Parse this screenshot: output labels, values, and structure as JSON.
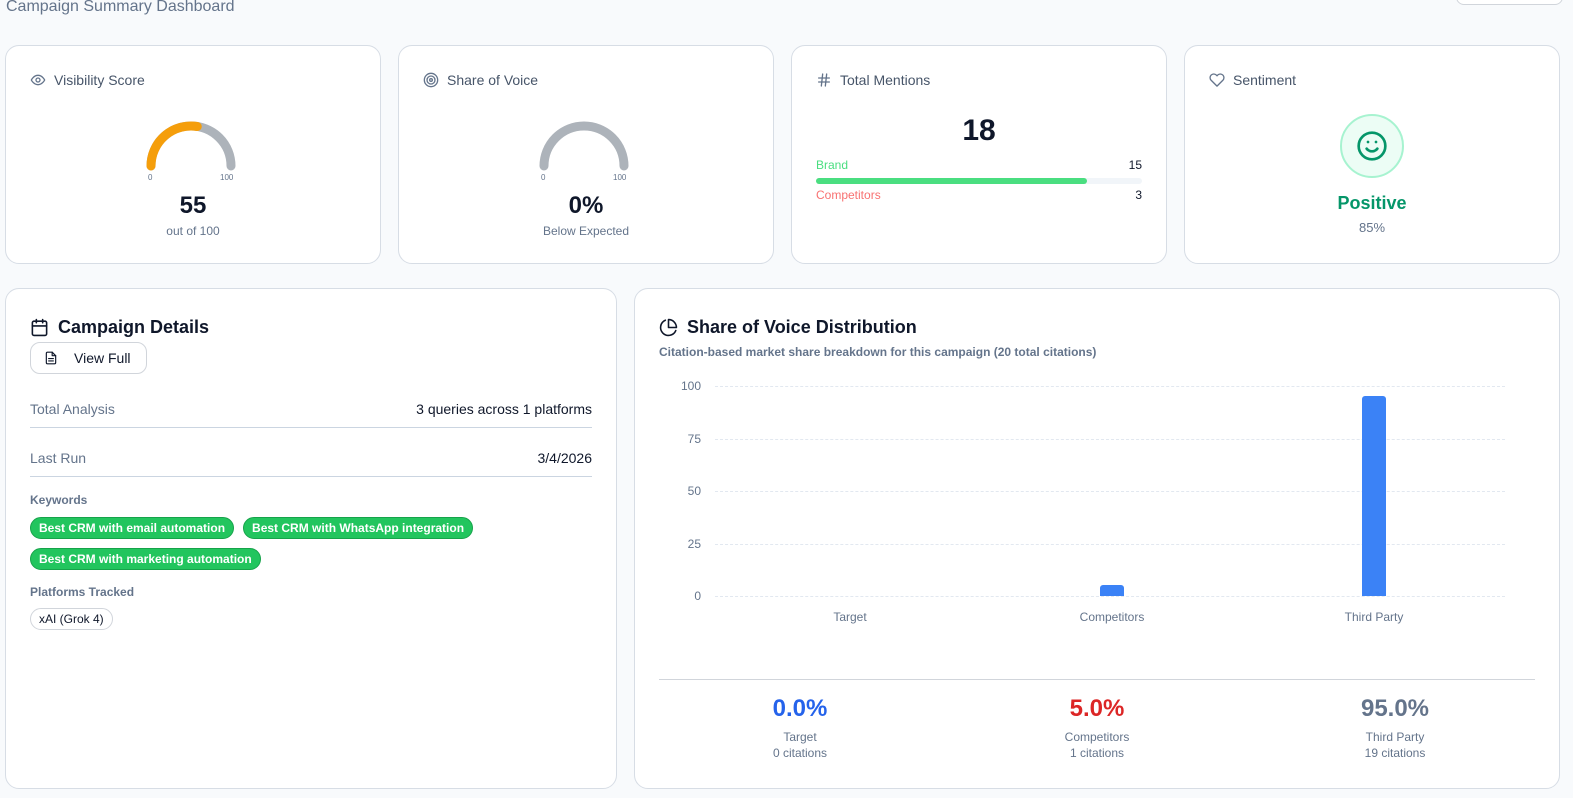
{
  "header": {
    "title": "Campaign Summary Dashboard"
  },
  "colors": {
    "gauge_fill": "#f59e0b",
    "gauge_track": "#adb3ba",
    "brand": "#4ade80",
    "competitors": "#f87171",
    "positive": "#059669",
    "bar": "#3b82f6",
    "target_pct": "#2563eb",
    "competitors_pct": "#dc2626",
    "third_party_pct": "#64748b",
    "keyword_chip": "#22c55e"
  },
  "stats": {
    "visibility": {
      "title": "Visibility Score",
      "icon": "eye-icon",
      "value": "55",
      "sub": "out of 100",
      "gauge_min": "0",
      "gauge_max": "100",
      "gauge_percent": 55
    },
    "share_of_voice": {
      "title": "Share of Voice",
      "icon": "target-icon",
      "value": "0%",
      "sub": "Below Expected",
      "gauge_min": "0",
      "gauge_max": "100",
      "gauge_percent": 0
    },
    "mentions": {
      "title": "Total Mentions",
      "icon": "hash-icon",
      "value": "18",
      "brand_label": "Brand",
      "brand_count": "15",
      "competitors_label": "Competitors",
      "competitors_count": "3",
      "brand_percent": 83
    },
    "sentiment": {
      "title": "Sentiment",
      "icon": "heart-icon",
      "face_icon": "smile-icon",
      "label": "Positive",
      "value": "85%"
    }
  },
  "campaign_details": {
    "title": "Campaign Details",
    "icon": "calendar-icon",
    "view_full_label": "View Full",
    "rows": [
      {
        "key": "Total Analysis",
        "value": "3 queries across 1 platforms"
      },
      {
        "key": "Last Run",
        "value": "3/4/2026"
      }
    ],
    "keywords_label": "Keywords",
    "keywords": [
      "Best CRM with email automation",
      "Best CRM with WhatsApp integration",
      "Best CRM with marketing automation"
    ],
    "platforms_label": "Platforms Tracked",
    "platforms": [
      "xAI (Grok 4)"
    ]
  },
  "sov_distribution": {
    "title": "Share of Voice Distribution",
    "icon": "pie-chart-icon",
    "subtitle": "Citation-based market share breakdown for this campaign (20 total citations)",
    "summary": [
      {
        "pct": "0.0%",
        "label": "Target",
        "citations": "0 citations"
      },
      {
        "pct": "5.0%",
        "label": "Competitors",
        "citations": "1 citations"
      },
      {
        "pct": "95.0%",
        "label": "Third Party",
        "citations": "19 citations"
      }
    ]
  },
  "chart_data": {
    "type": "bar",
    "title": "Share of Voice Distribution",
    "subtitle": "Citation-based market share breakdown for this campaign (20 total citations)",
    "categories": [
      "Target",
      "Competitors",
      "Third Party"
    ],
    "values": [
      0,
      5,
      95
    ],
    "xlabel": "",
    "ylabel": "",
    "ylim": [
      0,
      100
    ],
    "yticks": [
      "0",
      "25",
      "50",
      "75",
      "100"
    ],
    "grid": true,
    "legend": null
  }
}
